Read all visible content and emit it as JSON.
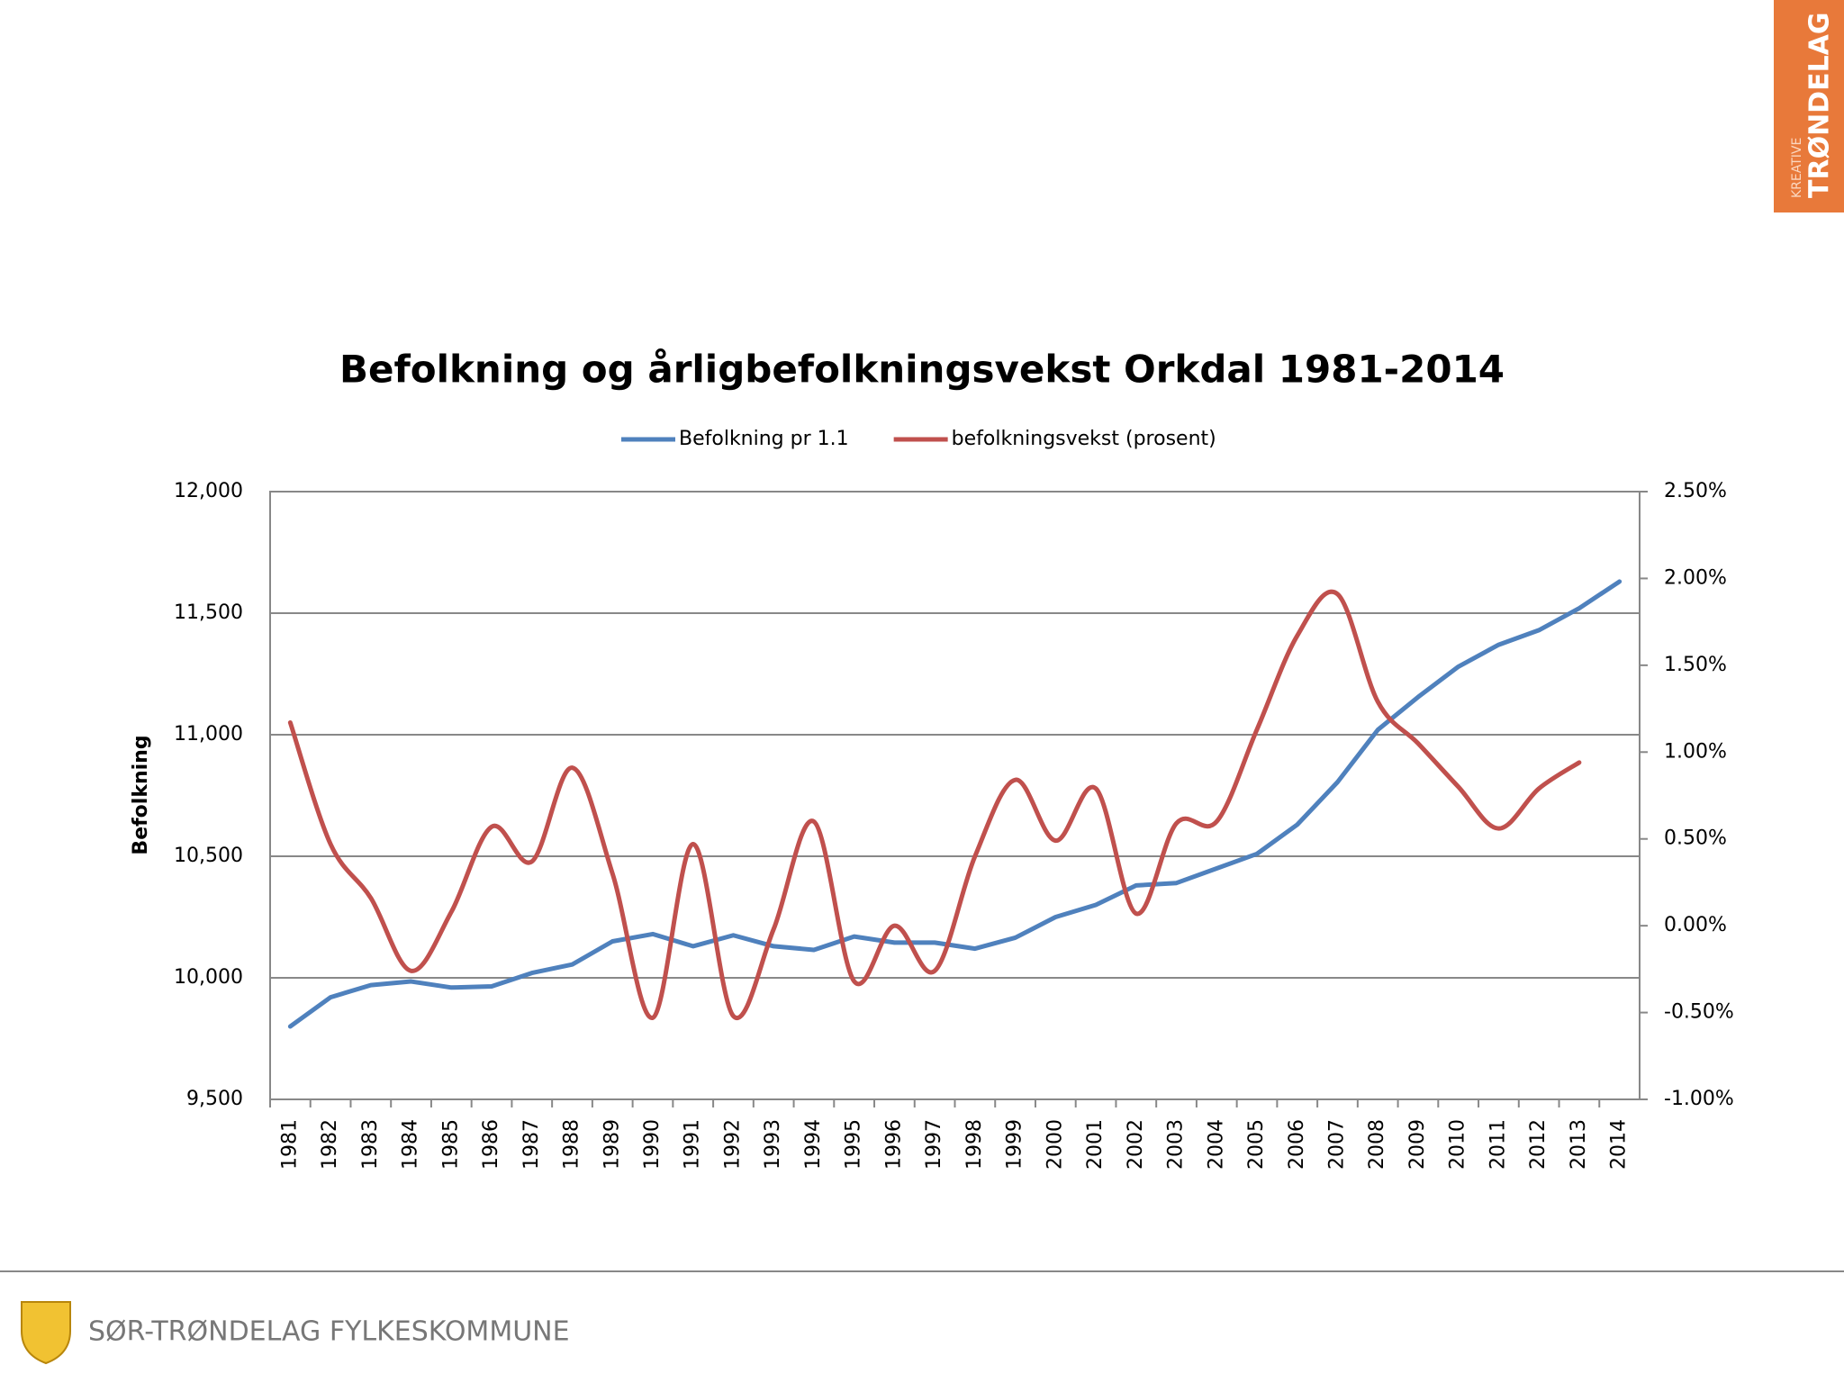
{
  "chart_data": {
    "type": "line",
    "title": "Befolkning og årligbefolkningsvekst Orkdal 1981-2014",
    "y_label": "Befolkning",
    "categories": [
      "1981",
      "1982",
      "1983",
      "1984",
      "1985",
      "1986",
      "1987",
      "1988",
      "1989",
      "1990",
      "1991",
      "1992",
      "1993",
      "1994",
      "1995",
      "1996",
      "1997",
      "1998",
      "1999",
      "2000",
      "2001",
      "2002",
      "2003",
      "2004",
      "2005",
      "2006",
      "2007",
      "2008",
      "2009",
      "2010",
      "2011",
      "2012",
      "2013",
      "2014"
    ],
    "series": [
      {
        "name": "Befolkning pr 1.1",
        "color": "#4f81bd",
        "smooth": false,
        "values": [
          9800,
          9920,
          9970,
          9985,
          9960,
          9965,
          10020,
          10055,
          10150,
          10180,
          10130,
          10175,
          10130,
          10115,
          10170,
          10145,
          10145,
          10120,
          10165,
          10250,
          10300,
          10380,
          10390,
          10450,
          10510,
          10630,
          10805,
          11020,
          11155,
          11280,
          11370,
          11430,
          11520,
          11630
        ]
      },
      {
        "name": "befolkningsvekst (prosent)",
        "color": "#c0504d",
        "smooth": true,
        "axis": "y2",
        "values": [
          1.17,
          0.47,
          0.16,
          -0.26,
          0.08,
          0.57,
          0.37,
          0.91,
          0.3,
          -0.53,
          0.47,
          -0.52,
          -0.02,
          0.6,
          -0.32,
          0.0,
          -0.26,
          0.4,
          0.84,
          0.49,
          0.79,
          0.07,
          0.59,
          0.6,
          1.13,
          1.67,
          1.91,
          1.29,
          1.05,
          0.8,
          0.56,
          0.79,
          0.94,
          null
        ]
      }
    ],
    "ylim": [
      9500,
      12000
    ],
    "yticks": [
      {
        "value": 9500,
        "label": "9,500"
      },
      {
        "value": 10000,
        "label": "10,000"
      },
      {
        "value": 10500,
        "label": "10,500"
      },
      {
        "value": 11000,
        "label": "11,000"
      },
      {
        "value": 11500,
        "label": "11,500"
      },
      {
        "value": 12000,
        "label": "12,000"
      }
    ],
    "y2lim": [
      -1,
      2.5
    ],
    "y2ticks": [
      {
        "value": -1,
        "label": "-1.00%"
      },
      {
        "value": -0.5,
        "label": "-0.50%"
      },
      {
        "value": 0,
        "label": "0.00%"
      },
      {
        "value": 0.5,
        "label": "0.50%"
      },
      {
        "value": 1,
        "label": "1.00%"
      },
      {
        "value": 1.5,
        "label": "1.50%"
      },
      {
        "value": 2,
        "label": "2.00%"
      },
      {
        "value": 2.5,
        "label": "2.50%"
      }
    ],
    "grid": true,
    "legend": "top"
  },
  "footer": {
    "organization": "SØR-TRØNDELAG FYLKESKOMMUNE"
  },
  "badge": {
    "small": "KREATIVE",
    "large": "TRØNDELAG"
  }
}
